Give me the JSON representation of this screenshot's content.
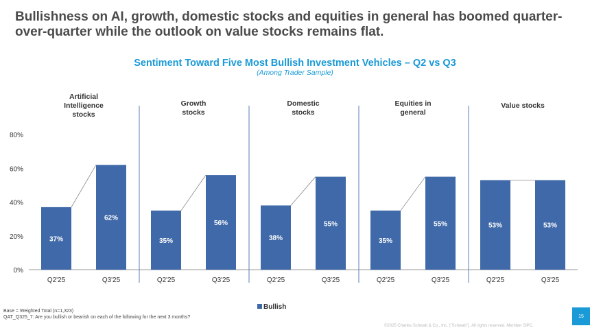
{
  "headline": "Bullishness on AI, growth, domestic stocks and equities in general has boomed quarter-over-quarter while the outlook on value stocks remains flat.",
  "colors": {
    "bar": "#3f69a8",
    "accent": "#1a9ad6",
    "divider": "#5b7fb5"
  },
  "chart_data": {
    "type": "bar",
    "title": "Sentiment Toward Five Most Bullish Investment Vehicles – Q2 vs Q3",
    "subtitle": "(Among Trader Sample)",
    "ylim": [
      0,
      80
    ],
    "yticks": [
      "0%",
      "20%",
      "40%",
      "60%",
      "80%"
    ],
    "ytick_values": [
      0,
      20,
      40,
      60,
      80
    ],
    "legend": "Bullish",
    "legend_position": "bottom-center",
    "groups": [
      {
        "name": [
          "Artificial",
          "Intelligence",
          "stocks"
        ],
        "periods": [
          "Q2'25",
          "Q3'25"
        ],
        "values": [
          37,
          62
        ],
        "labels": [
          "37%",
          "62%"
        ]
      },
      {
        "name": [
          "Growth",
          "stocks"
        ],
        "periods": [
          "Q2'25",
          "Q3'25"
        ],
        "values": [
          35,
          56
        ],
        "labels": [
          "35%",
          "56%"
        ]
      },
      {
        "name": [
          "Domestic",
          "stocks"
        ],
        "periods": [
          "Q2'25",
          "Q3'25"
        ],
        "values": [
          38,
          55
        ],
        "labels": [
          "38%",
          "55%"
        ]
      },
      {
        "name": [
          "Equities in",
          "general"
        ],
        "periods": [
          "Q2'25",
          "Q3'25"
        ],
        "values": [
          35,
          55
        ],
        "labels": [
          "35%",
          "55%"
        ]
      },
      {
        "name": [
          "Value stocks"
        ],
        "periods": [
          "Q2'25",
          "Q3'25"
        ],
        "values": [
          53,
          53
        ],
        "labels": [
          "53%",
          "53%"
        ]
      }
    ]
  },
  "footnotes": {
    "base": "Base = Weighted Total (n=1,323)",
    "question": "QAT_Q325_7: Are you bullish or bearish on each of the following for the next 3 months?"
  },
  "page_number": "15",
  "copyright": "©2025 Charles Schwab & Co., Inc. (\"Schwab\"). All rights reserved. Member SIPC."
}
